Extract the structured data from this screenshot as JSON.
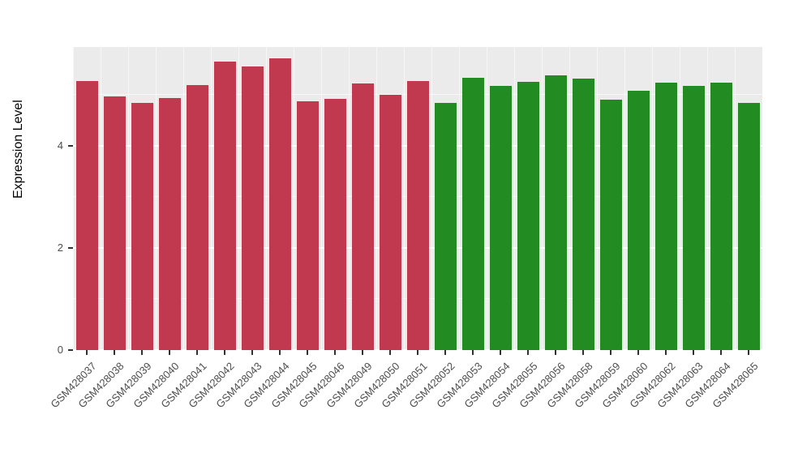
{
  "chart_data": {
    "type": "bar",
    "title": "",
    "xlabel": "",
    "ylabel": "Expression Level",
    "ylim": [
      0,
      5.94
    ],
    "yticks": [
      0,
      2,
      4
    ],
    "ytick_labels": [
      "0",
      "2",
      "4"
    ],
    "grid": "on",
    "legend_position": "none",
    "panel_background": "#EBEBEB",
    "gridline_color": "#FFFFFF",
    "categories": [
      "GSM428037",
      "GSM428038",
      "GSM428039",
      "GSM428040",
      "GSM428041",
      "GSM428042",
      "GSM428043",
      "GSM428044",
      "GSM428045",
      "GSM428046",
      "GSM428049",
      "GSM428050",
      "GSM428051",
      "GSM428052",
      "GSM428053",
      "GSM428054",
      "GSM428055",
      "GSM428056",
      "GSM428058",
      "GSM428059",
      "GSM428060",
      "GSM428062",
      "GSM428063",
      "GSM428064",
      "GSM428065"
    ],
    "values": [
      5.27,
      4.97,
      4.84,
      4.94,
      5.2,
      5.66,
      5.56,
      5.71,
      4.87,
      4.93,
      5.22,
      5.0,
      5.27,
      4.85,
      5.34,
      5.17,
      5.26,
      5.39,
      5.32,
      4.9,
      5.08,
      5.24,
      5.18,
      5.24,
      4.84
    ],
    "groups": [
      "group1",
      "group1",
      "group1",
      "group1",
      "group1",
      "group1",
      "group1",
      "group1",
      "group1",
      "group1",
      "group1",
      "group1",
      "group1",
      "group2",
      "group2",
      "group2",
      "group2",
      "group2",
      "group2",
      "group2",
      "group2",
      "group2",
      "group2",
      "group2",
      "group2"
    ],
    "group_colors": {
      "group1": "#C0394F",
      "group2": "#228B22"
    }
  }
}
